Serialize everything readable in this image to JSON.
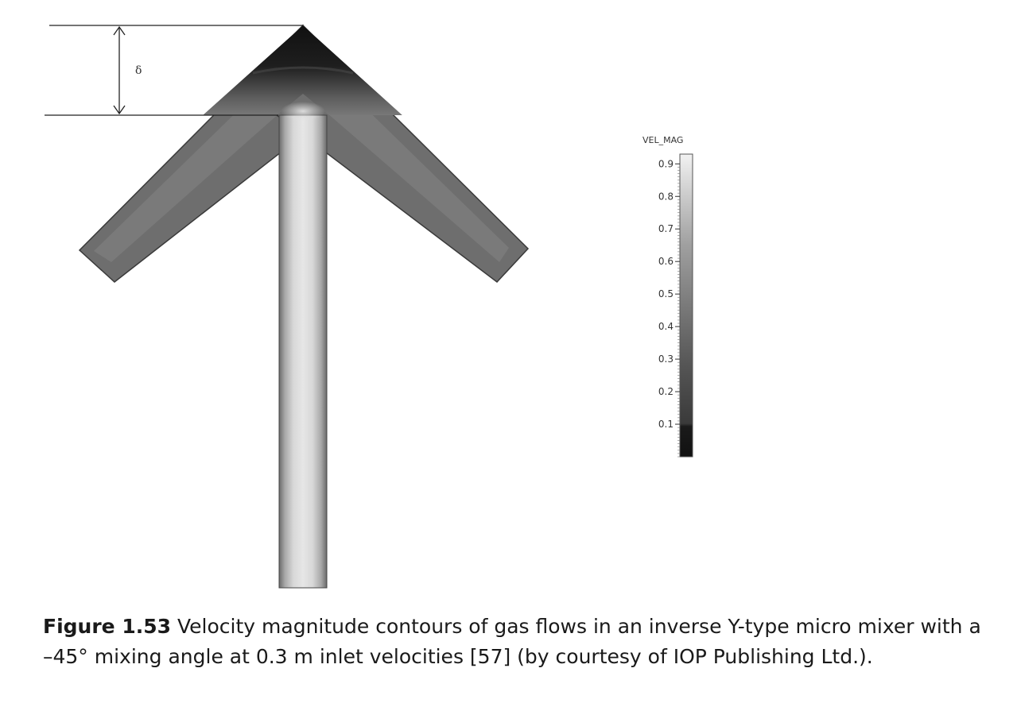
{
  "diagram": {
    "dimension_symbol": "δ",
    "legend": {
      "title": "VEL_MAG",
      "ticks": [
        "0.9",
        "0.8",
        "0.7",
        "0.6",
        "0.5",
        "0.4",
        "0.3",
        "0.2",
        "0.1"
      ],
      "range": [
        0,
        0.93
      ],
      "colors": {
        "low": "#111111",
        "high": "#f2f2f2"
      }
    }
  },
  "caption": {
    "label": "Figure 1.53",
    "text": "Velocity magnitude contours of gas flows in an inverse Y-type micro mixer with a –45° mixing angle at 0.3 m inlet velocities [57] (by courtesy of IOP Publishing Ltd.)."
  }
}
